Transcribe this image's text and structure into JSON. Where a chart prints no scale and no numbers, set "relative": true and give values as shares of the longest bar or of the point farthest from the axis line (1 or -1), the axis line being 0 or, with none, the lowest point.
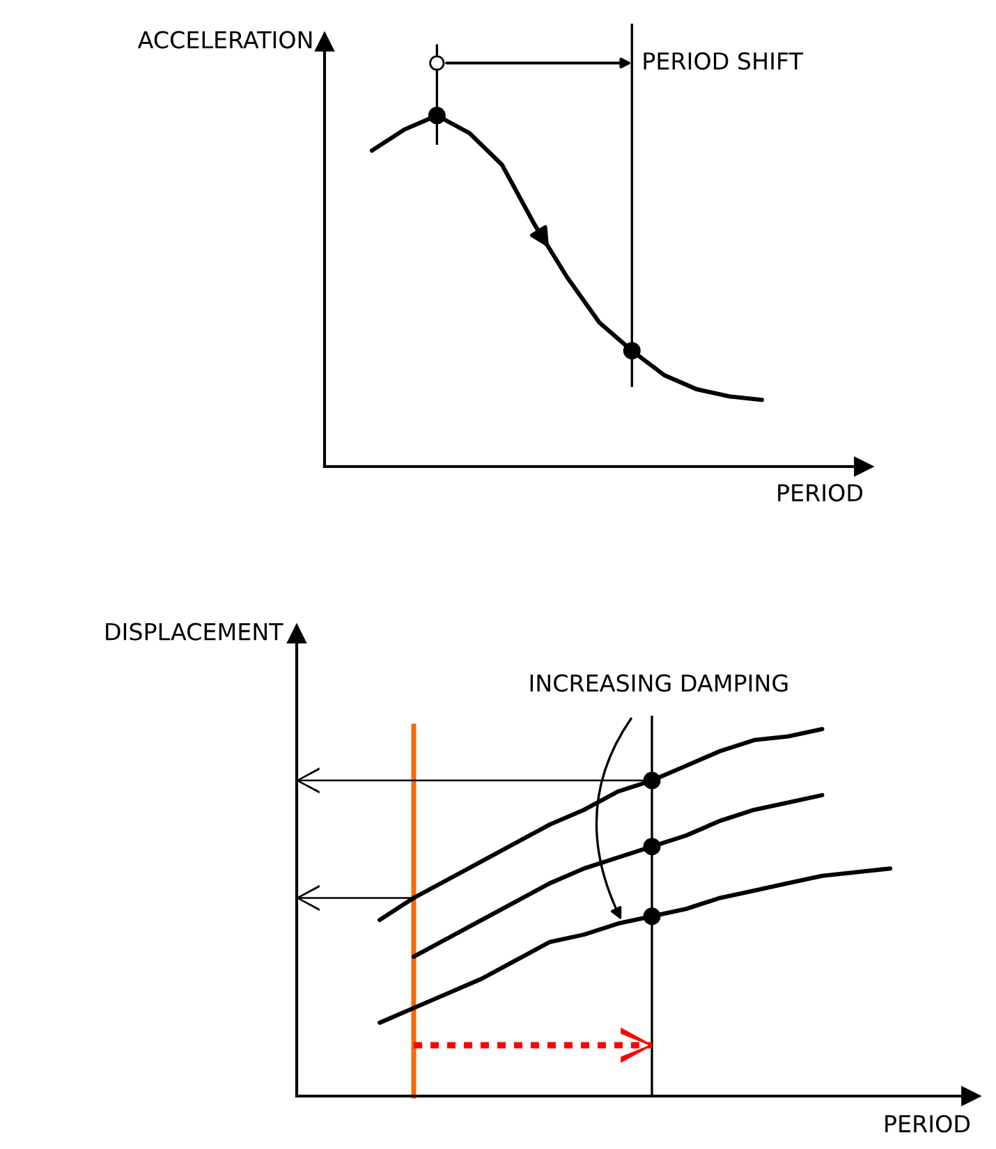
{
  "chart_data": [
    {
      "type": "line",
      "ylabel": "ACCELERATION",
      "xlabel": "PERIOD",
      "relative": true,
      "categories": [
        null,
        null,
        null,
        null,
        null,
        null,
        null,
        null,
        null,
        null,
        null,
        null,
        null
      ],
      "series": [
        {
          "color": "#000000",
          "values": [
            0.9,
            0.96,
            1,
            0.95,
            0.86,
            0.69,
            0.54,
            0.41,
            0.33,
            0.26,
            0.22,
            0.2,
            0.19
          ]
        }
      ],
      "annotations": [
        "PERIOD SHIFT"
      ]
    },
    {
      "type": "line",
      "ylabel": "DISPLACEMENT",
      "xlabel": "PERIOD",
      "relative": true,
      "categories": [
        null,
        null,
        null,
        null,
        null,
        null,
        null,
        null,
        null,
        null,
        null,
        null,
        null,
        null,
        null,
        null
      ],
      "series": [
        {
          "color": "#000000",
          "values": [
            0.48,
            0.54,
            0.59,
            0.64,
            0.69,
            0.74,
            0.78,
            0.83,
            0.86,
            0.9,
            0.94,
            0.97,
            0.98,
            1,
            null,
            null
          ]
        },
        {
          "color": "#000000",
          "values": [
            null,
            0.38,
            0.43,
            0.48,
            0.53,
            0.58,
            0.62,
            0.65,
            0.68,
            0.71,
            0.75,
            0.78,
            0.8,
            0.82,
            null,
            null
          ]
        },
        {
          "color": "#000000",
          "values": [
            0.2,
            0.24,
            0.28,
            0.32,
            0.37,
            0.42,
            0.44,
            0.47,
            0.49,
            0.51,
            0.54,
            0.56,
            0.58,
            0.6,
            0.61,
            0.62
          ]
        }
      ],
      "annotations": [
        "INCREASING DAMPING"
      ]
    }
  ]
}
